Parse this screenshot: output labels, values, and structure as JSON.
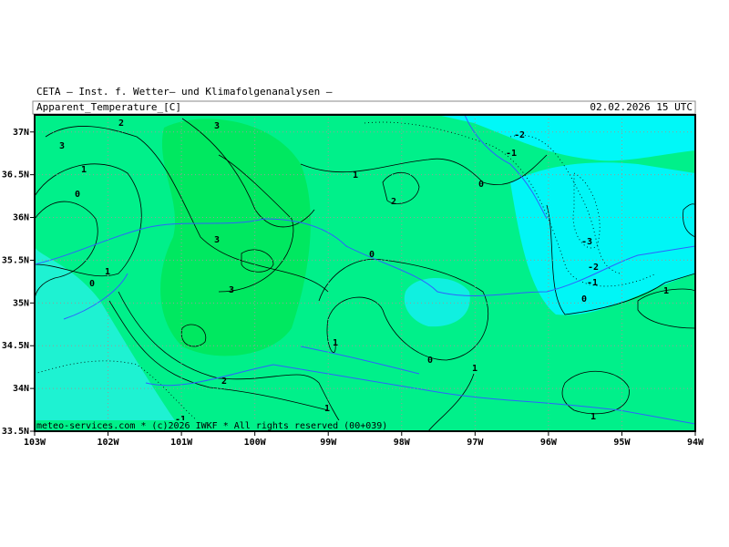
{
  "header": {
    "title": "CETA — Inst. f. Wetter— und Klimafolgenanalysen —",
    "variable": "Apparent_Temperature_[C]",
    "valid_time": "02.02.2026 15 UTC"
  },
  "map": {
    "xlim": [
      -103,
      -94
    ],
    "ylim": [
      33.5,
      37.2
    ],
    "lon_ticks": [
      {
        "value": -103,
        "label": "103W"
      },
      {
        "value": -102,
        "label": "102W"
      },
      {
        "value": -101,
        "label": "101W"
      },
      {
        "value": -100,
        "label": "100W"
      },
      {
        "value": -99,
        "label": "99W"
      },
      {
        "value": -98,
        "label": "98W"
      },
      {
        "value": -97,
        "label": "97W"
      },
      {
        "value": -96,
        "label": "96W"
      },
      {
        "value": -95,
        "label": "95W"
      },
      {
        "value": -94,
        "label": "94W"
      }
    ],
    "lat_ticks": [
      {
        "value": 37,
        "label": "37N"
      },
      {
        "value": 36.5,
        "label": "36.5N"
      },
      {
        "value": 36,
        "label": "36N"
      },
      {
        "value": 35.5,
        "label": "35.5N"
      },
      {
        "value": 35,
        "label": "35N"
      },
      {
        "value": 34.5,
        "label": "34.5N"
      },
      {
        "value": 34,
        "label": "34N"
      },
      {
        "value": 33.5,
        "label": "33.5N"
      }
    ],
    "contour_labels": [
      3,
      2,
      3,
      1,
      0,
      3,
      1,
      2,
      0,
      -2,
      -1,
      -3,
      -2,
      -1,
      0,
      1,
      0,
      1,
      0,
      3,
      1,
      0,
      1,
      2,
      1,
      -1,
      1
    ],
    "credit": "meteo-services.com * (c)2026 IWKF * All rights reserved (00+039)"
  }
}
